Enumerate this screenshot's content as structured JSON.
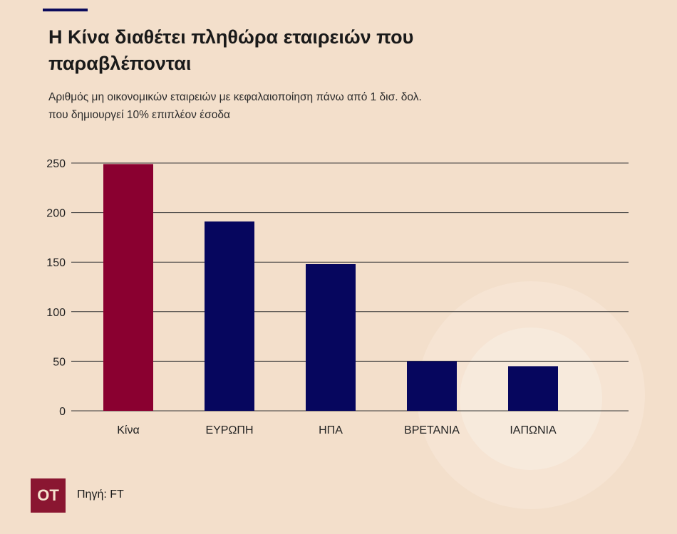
{
  "header": {
    "title": "Η Κίνα διαθέτει πληθώρα εταιρειών που παραβλέπονται",
    "subtitle_line1": "Αριθμός μη οικονομικών εταιρειών με κεφαλαιοποίηση πάνω από 1 δισ. δολ.",
    "subtitle_line2": "που δημιουργεί 10% επιπλέον έσοδα"
  },
  "footer": {
    "logo": "OT",
    "source": "Πηγή: FT"
  },
  "colors": {
    "background": "#f3dfcb",
    "highlight": "#8a0030",
    "default": "#06065e",
    "logo": "#8a1631"
  },
  "chart_data": {
    "type": "bar",
    "title": "Η Κίνα διαθέτει πληθώρα εταιρειών που παραβλέπονται",
    "categories": [
      "Κίνα",
      "ΕΥΡΩΠΗ",
      "ΗΠΑ",
      "ΒΡΕΤΑΝΙΑ",
      "ΙΑΠΩΝΙΑ"
    ],
    "values": [
      249,
      191,
      148,
      50,
      45
    ],
    "highlighted": [
      "Κίνα"
    ],
    "xlabel": "",
    "ylabel": "",
    "ylim": [
      0,
      250
    ],
    "yticks": [
      0,
      50,
      100,
      150,
      200,
      250
    ],
    "grid": true
  }
}
